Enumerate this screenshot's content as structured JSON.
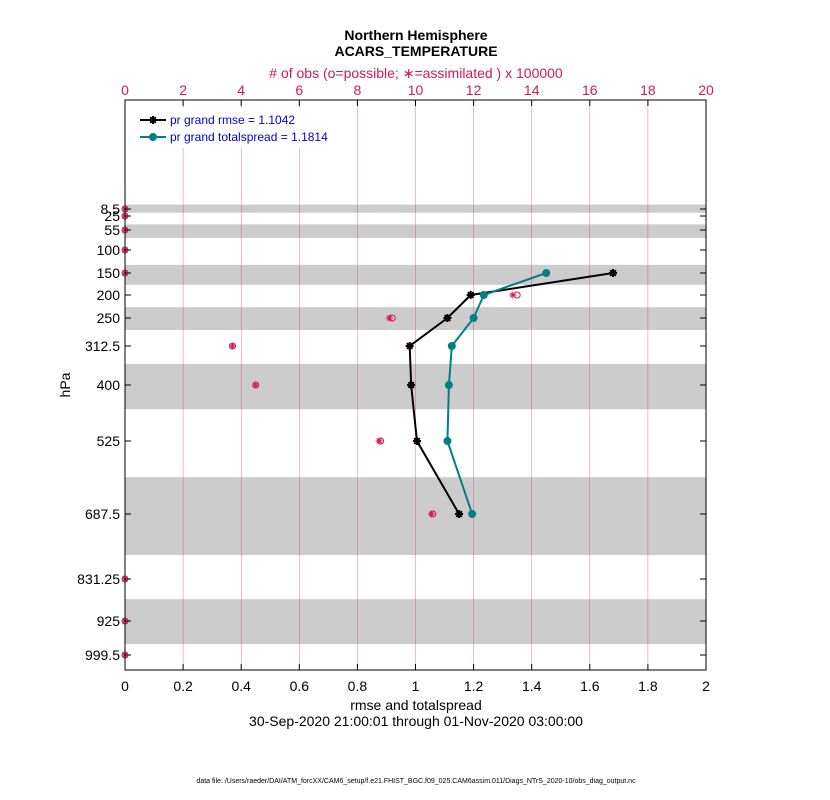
{
  "chart_data": {
    "type": "line",
    "title": "Northern Hemisphere",
    "subtitle": "ACARS_TEMPERATURE",
    "top_axis_label": "# of obs (o=possible; ∗=assimilated ) x 100000",
    "xlabel": "rmse and totalspread",
    "ylabel": "hPa",
    "date_range": "30-Sep-2020 21:00:01 through 01-Nov-2020 03:00:00",
    "footnote": "data file: /Users/raeder/DAI/ATM_forcXX/CAM6_setup/f.e21.FHIST_BGC.f09_025.CAM6assim.011/Diags_NTrS_2020-10/obs_diag_output.nc",
    "xlim": [
      0,
      2
    ],
    "x_ticks": [
      "0",
      "0.2",
      "0.4",
      "0.6",
      "0.8",
      "1",
      "1.2",
      "1.4",
      "1.6",
      "1.8",
      "2"
    ],
    "top_xlim": [
      0,
      20
    ],
    "top_ticks": [
      "0",
      "2",
      "4",
      "6",
      "8",
      "10",
      "12",
      "14",
      "16",
      "18",
      "20"
    ],
    "levels": [
      8.5,
      25,
      55,
      100,
      150,
      200,
      250,
      312.5,
      400,
      525,
      687.5,
      831.25,
      925,
      999.5
    ],
    "level_labels": [
      "8.5",
      "25",
      "55",
      "100",
      "150",
      "200",
      "250",
      "312.5",
      "400",
      "525",
      "687.5",
      "831.25",
      "925",
      "999.5"
    ],
    "shaded_bands_hPa": [
      [
        7,
        15
      ],
      [
        40,
        70
      ],
      [
        130,
        175
      ],
      [
        225,
        275
      ],
      [
        350,
        450
      ],
      [
        600,
        775
      ],
      [
        875,
        975
      ]
    ],
    "series": [
      {
        "name": "pr grand rmse = 1.1042",
        "color": "#000000",
        "marker": "asterisk",
        "levels": [
          150,
          200,
          250,
          312.5,
          400,
          525,
          687.5
        ],
        "values": [
          1.68,
          1.19,
          1.11,
          0.98,
          0.985,
          1.005,
          1.15
        ]
      },
      {
        "name": "pr grand totalspread = 1.1814",
        "color": "#008080",
        "marker": "circle",
        "levels": [
          150,
          200,
          250,
          312.5,
          400,
          525,
          687.5
        ],
        "values": [
          1.45,
          1.235,
          1.2,
          1.125,
          1.115,
          1.11,
          1.195
        ]
      }
    ],
    "obs_counts": {
      "color": "#d6175a",
      "levels": [
        8.5,
        25,
        55,
        100,
        150,
        200,
        250,
        312.5,
        400,
        525,
        687.5,
        831.25,
        925,
        999.5
      ],
      "possible_x100000": [
        0,
        0,
        0,
        0,
        0,
        13.5,
        9.2,
        3.7,
        4.5,
        8.8,
        10.6,
        0,
        0,
        0
      ],
      "assimilated_x100000": [
        0,
        0,
        0,
        0,
        0,
        13.35,
        9.1,
        3.7,
        4.5,
        8.75,
        10.55,
        0,
        0,
        0
      ]
    }
  }
}
